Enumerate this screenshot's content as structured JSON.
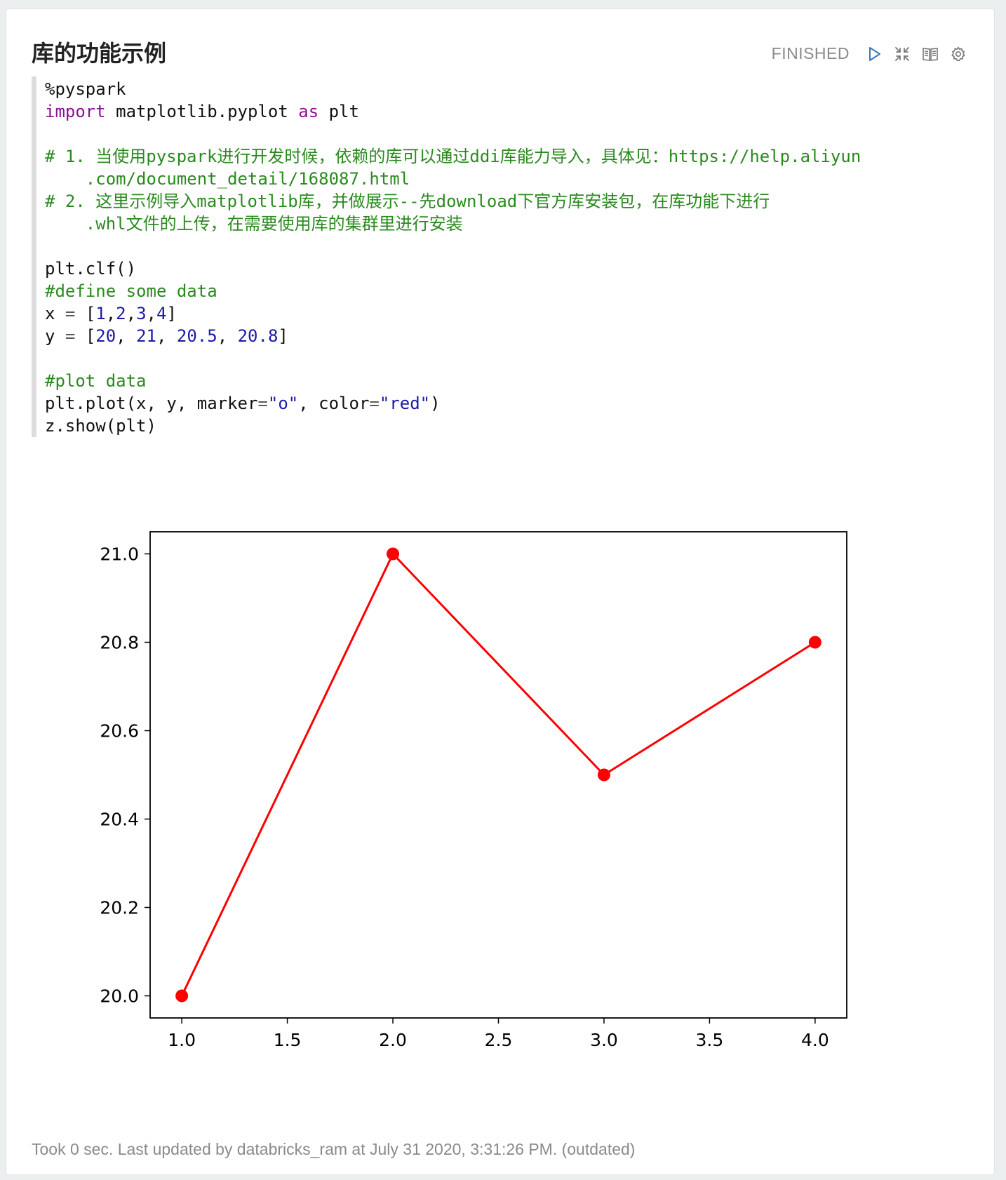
{
  "paragraph": {
    "title": "库的功能示例",
    "status": "FINISHED",
    "controls": [
      "play-icon",
      "collapse-icon",
      "book-icon",
      "gear-icon"
    ]
  },
  "code": {
    "line1": "%pyspark",
    "line2_kw_import": "import",
    "line2_mid": " matplotlib.pyplot ",
    "line2_kw_as": "as",
    "line2_end": " plt",
    "comment1a": "# 1. 当使用pyspark进行开发时候，依赖的库可以通过ddi库能力导入，具体见：https://help.aliyun",
    "comment1b": "    .com/document_detail/168087.html",
    "comment2a": "# 2. 这里示例导入matplotlib库，并做展示--先download下官方库安装包，在库功能下进行",
    "comment2b": "    .whl文件的上传，在需要使用库的集群里进行安装",
    "clf": "plt.clf()",
    "comment3": "#define some data",
    "x_name": "x",
    "eq": " = ",
    "x_open": "[",
    "x1": "1",
    "x2": "2",
    "x3": "3",
    "x4": "4",
    "comma": ",",
    "comma_sp": ", ",
    "x_close": "]",
    "y_name": "y",
    "y1": "20",
    "y2": "21",
    "y3": "20.5",
    "y4": "20.8",
    "comment4": "#plot data",
    "plot_a": "plt.plot(x, y, marker",
    "plot_eq": "=",
    "plot_marker": "\"o\"",
    "plot_b": ", color",
    "plot_color": "\"red\"",
    "plot_c": ")",
    "show": "z.show(plt)"
  },
  "footer": {
    "text": "Took 0 sec. Last updated by databricks_ram at July 31 2020, 3:31:26 PM. (outdated)"
  },
  "chart_data": {
    "type": "line",
    "x": [
      1,
      2,
      3,
      4
    ],
    "series": [
      {
        "values": [
          20,
          21,
          20.5,
          20.8
        ],
        "color": "#ff0000",
        "marker": "o"
      }
    ],
    "xlim": [
      0.85,
      4.15
    ],
    "ylim": [
      19.95,
      21.05
    ],
    "xticks": [
      "1.0",
      "1.5",
      "2.0",
      "2.5",
      "3.0",
      "3.5",
      "4.0"
    ],
    "yticks": [
      "20.0",
      "20.2",
      "20.4",
      "20.6",
      "20.8",
      "21.0"
    ],
    "grid": false
  }
}
